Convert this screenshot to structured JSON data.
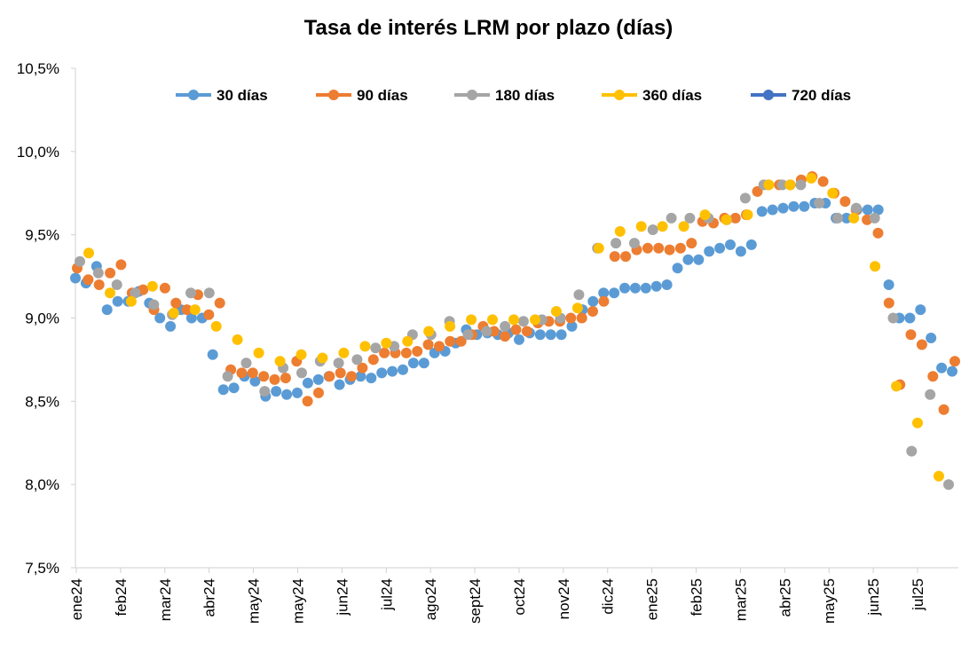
{
  "chart_data": {
    "type": "line",
    "title": "Tasa de interés LRM por plazo (días)",
    "xlabel": "",
    "ylabel": "",
    "ylim": [
      7.5,
      10.5
    ],
    "y_ticks": [
      "7,5%",
      "8,0%",
      "8,5%",
      "9,0%",
      "9,5%",
      "10,0%",
      "10,5%"
    ],
    "x_ticks": [
      "ene24",
      "feb24",
      "mar24",
      "abr24",
      "may24",
      "may24",
      "jun24",
      "jul24",
      "ago24",
      "sept24",
      "oct24",
      "nov24",
      "dic24",
      "ene25",
      "feb25",
      "mar25",
      "abr25",
      "may25",
      "jun25",
      "jul25"
    ],
    "grid": false,
    "legend_position": "top",
    "markers_only": true,
    "series": [
      {
        "name": "30 días",
        "color": "#5B9BD5",
        "values": [
          9.24,
          9.21,
          9.31,
          9.05,
          9.1,
          9.1,
          9.16,
          9.09,
          9.0,
          8.95,
          9.05,
          9.0,
          9.0,
          8.78,
          8.57,
          8.58,
          8.65,
          8.62,
          8.53,
          8.56,
          8.54,
          8.55,
          8.61,
          8.63,
          8.65,
          8.6,
          8.63,
          8.65,
          8.64,
          8.67,
          8.68,
          8.69,
          8.73,
          8.73,
          8.79,
          8.8,
          8.85,
          8.93,
          8.9,
          8.91,
          8.9,
          8.91,
          8.87,
          8.91,
          8.9,
          8.9,
          8.9,
          8.95,
          9.05,
          9.1,
          9.15,
          9.15,
          9.18,
          9.18,
          9.18,
          9.19,
          9.2,
          9.3,
          9.35,
          9.35,
          9.4,
          9.42,
          9.44,
          9.4,
          9.44,
          9.64,
          9.65,
          9.66,
          9.67,
          9.67,
          9.69,
          9.69,
          9.6,
          9.6,
          9.65,
          9.65,
          9.65,
          9.2,
          9.0,
          9.0,
          9.05,
          8.88,
          8.7,
          8.68
        ]
      },
      {
        "name": "90 días",
        "color": "#ED7D31",
        "values": [
          9.3,
          9.23,
          9.2,
          9.27,
          9.32,
          9.15,
          9.17,
          9.05,
          9.18,
          9.09,
          9.05,
          9.14,
          9.02,
          9.09,
          8.69,
          8.67,
          8.67,
          8.65,
          8.63,
          8.64,
          8.74,
          8.5,
          8.55,
          8.65,
          8.67,
          8.65,
          8.7,
          8.75,
          8.79,
          8.79,
          8.79,
          8.8,
          8.84,
          8.83,
          8.86,
          8.86,
          8.9,
          8.95,
          8.92,
          8.89,
          8.93,
          8.92,
          8.97,
          8.98,
          8.98,
          9.0,
          9.0,
          9.04,
          9.1,
          9.37,
          9.37,
          9.41,
          9.42,
          9.42,
          9.41,
          9.42,
          9.45,
          9.58,
          9.57,
          9.6,
          9.6,
          9.62,
          9.76,
          9.8,
          9.8,
          9.8,
          9.83,
          9.85,
          9.82,
          9.75,
          9.7,
          9.65,
          9.59,
          9.51,
          9.09,
          8.6,
          8.9,
          8.84,
          8.65,
          8.45,
          8.74
        ]
      },
      {
        "name": "180 días",
        "color": "#A5A5A5",
        "values": [
          9.34,
          9.27,
          9.2,
          9.15,
          9.08,
          9.02,
          9.15,
          9.15,
          8.65,
          8.73,
          8.56,
          8.7,
          8.67,
          8.74,
          8.73,
          8.75,
          8.82,
          8.83,
          8.9,
          8.9,
          8.98,
          8.9,
          8.92,
          8.95,
          8.98,
          8.99,
          9.0,
          9.14,
          9.42,
          9.45,
          9.45,
          9.53,
          9.6,
          9.6,
          9.6,
          9.59,
          9.72,
          9.8,
          9.8,
          9.8,
          9.69,
          9.6,
          9.66,
          9.6,
          9.0,
          8.2,
          8.54,
          8.0
        ]
      },
      {
        "name": "360 días",
        "color": "#FFC000",
        "values": [
          9.39,
          9.15,
          9.1,
          9.19,
          9.03,
          9.05,
          8.95,
          8.87,
          8.79,
          8.74,
          8.78,
          8.76,
          8.79,
          8.83,
          8.85,
          8.86,
          8.92,
          8.95,
          8.99,
          8.99,
          8.99,
          8.99,
          9.04,
          9.06,
          9.42,
          9.52,
          9.55,
          9.55,
          9.55,
          9.62,
          9.59,
          9.62,
          9.8,
          9.8,
          9.84,
          9.75,
          9.6,
          9.31,
          8.59,
          8.37,
          8.05
        ]
      },
      {
        "name": "720 días",
        "color": "#4472C4",
        "values": []
      }
    ]
  }
}
